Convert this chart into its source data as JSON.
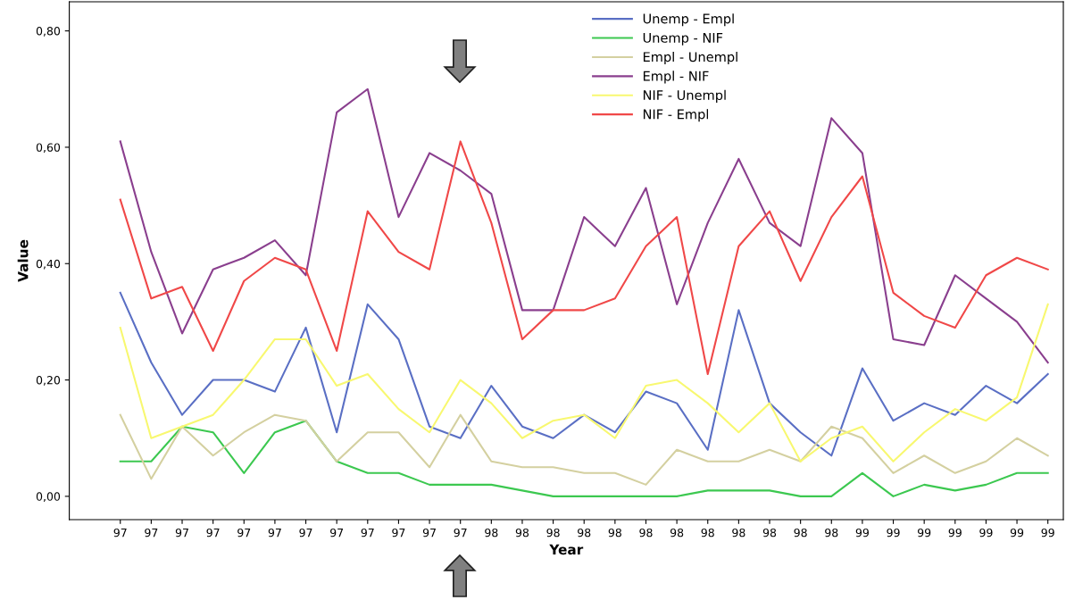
{
  "chart_data": {
    "type": "line",
    "xlabel": "Year",
    "ylabel": "Value",
    "categories": [
      "97",
      "97",
      "97",
      "97",
      "97",
      "97",
      "97",
      "97",
      "97",
      "97",
      "97",
      "97",
      "98",
      "98",
      "98",
      "98",
      "98",
      "98",
      "98",
      "98",
      "98",
      "98",
      "98",
      "98",
      "99",
      "99",
      "99",
      "99",
      "99",
      "99",
      "99"
    ],
    "ylim": [
      -0.04,
      0.85
    ],
    "yticks": [
      {
        "value": 0,
        "label": "0,00"
      },
      {
        "value": 0.2,
        "label": "0,20"
      },
      {
        "value": 0.4,
        "label": "0,40"
      },
      {
        "value": 0.6,
        "label": "0,60"
      },
      {
        "value": 0.8,
        "label": "0,80"
      }
    ],
    "grid": false,
    "legend": "top",
    "marker": "none",
    "line_style": "solid",
    "series": [
      {
        "name": "Unemp - Empl",
        "color": "#5a6fc4",
        "values": [
          0.35,
          0.23,
          0.14,
          0.2,
          0.2,
          0.18,
          0.29,
          0.11,
          0.33,
          0.27,
          0.12,
          0.1,
          0.19,
          0.12,
          0.1,
          0.14,
          0.11,
          0.18,
          0.16,
          0.08,
          0.32,
          0.16,
          0.11,
          0.07,
          0.22,
          0.13,
          0.16,
          0.14,
          0.19,
          0.16,
          0.21
        ]
      },
      {
        "name": "Unemp - NIF",
        "color": "#3cc850",
        "values": [
          0.06,
          0.06,
          0.12,
          0.11,
          0.04,
          0.11,
          0.13,
          0.06,
          0.04,
          0.04,
          0.02,
          0.02,
          0.02,
          0.01,
          0,
          0,
          0,
          0,
          0,
          0.01,
          0.01,
          0.01,
          0,
          0,
          0.04,
          0,
          0.02,
          0.01,
          0.02,
          0.04,
          0.04
        ]
      },
      {
        "name": "Empl - Unempl",
        "color": "#d4d0a0",
        "values": [
          0.14,
          0.03,
          0.12,
          0.07,
          0.11,
          0.14,
          0.13,
          0.06,
          0.11,
          0.11,
          0.05,
          0.14,
          0.06,
          0.05,
          0.05,
          0.04,
          0.04,
          0.02,
          0.08,
          0.06,
          0.06,
          0.08,
          0.06,
          0.12,
          0.1,
          0.04,
          0.07,
          0.04,
          0.06,
          0.1,
          0.07
        ]
      },
      {
        "name": "Empl - NIF",
        "color": "#8a3f8e",
        "values": [
          0.61,
          0.42,
          0.28,
          0.39,
          0.41,
          0.44,
          0.38,
          0.66,
          0.7,
          0.48,
          0.59,
          0.56,
          0.52,
          0.32,
          0.32,
          0.48,
          0.43,
          0.53,
          0.33,
          0.47,
          0.58,
          0.47,
          0.43,
          0.65,
          0.59,
          0.27,
          0.26,
          0.38,
          0.34,
          0.3,
          0.23
        ]
      },
      {
        "name": "NIF - Unempl",
        "color": "#f8f870",
        "values": [
          0.29,
          0.1,
          0.12,
          0.14,
          0.2,
          0.27,
          0.27,
          0.19,
          0.21,
          0.15,
          0.11,
          0.2,
          0.16,
          0.1,
          0.13,
          0.14,
          0.1,
          0.19,
          0.2,
          0.16,
          0.11,
          0.16,
          0.06,
          0.1,
          0.12,
          0.06,
          0.11,
          0.15,
          0.13,
          0.17,
          0.33
        ]
      },
      {
        "name": "NIF - Empl",
        "color": "#f04848",
        "values": [
          0.51,
          0.34,
          0.36,
          0.25,
          0.37,
          0.41,
          0.39,
          0.25,
          0.49,
          0.42,
          0.39,
          0.61,
          0.47,
          0.27,
          0.32,
          0.32,
          0.34,
          0.43,
          0.48,
          0.21,
          0.43,
          0.49,
          0.37,
          0.48,
          0.55,
          0.35,
          0.31,
          0.29,
          0.38,
          0.41,
          0.39
        ]
      }
    ]
  }
}
